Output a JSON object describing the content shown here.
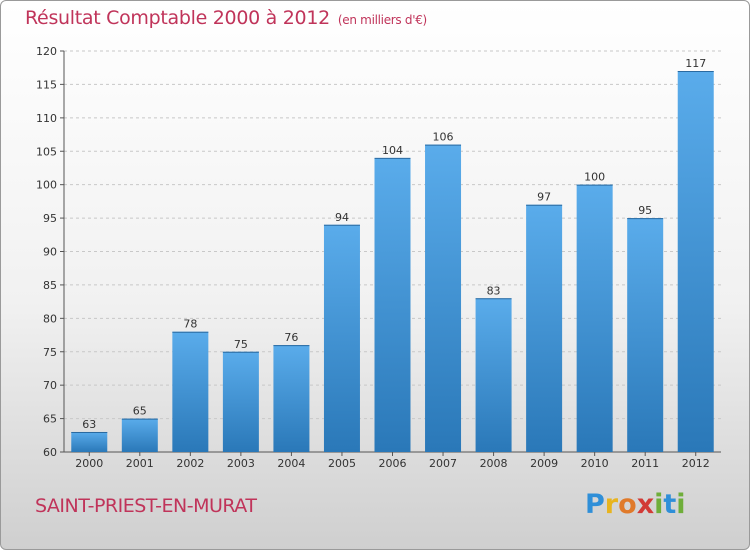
{
  "title": "Résultat Comptable 2000 à 2012",
  "unit": "(en milliers d'€)",
  "town": "SAINT-PRIEST-EN-MURAT",
  "logo": {
    "text": "Proxiti",
    "letters": [
      {
        "ch": "P",
        "color": "#2f8fd8"
      },
      {
        "ch": "r",
        "color": "#e8b41e"
      },
      {
        "ch": "o",
        "color": "#e07a2a"
      },
      {
        "ch": "x",
        "color": "#d23a36"
      },
      {
        "ch": "i",
        "color": "#6fae3a"
      },
      {
        "ch": "t",
        "color": "#2f8fd8"
      },
      {
        "ch": "i",
        "color": "#6fae3a"
      }
    ]
  },
  "colors": {
    "bar_top": "#5aaceb",
    "bar_bottom": "#2a78b8",
    "title": "#c0345a"
  },
  "chart_data": {
    "type": "bar",
    "categories": [
      "2000",
      "2001",
      "2002",
      "2003",
      "2004",
      "2005",
      "2006",
      "2007",
      "2008",
      "2009",
      "2010",
      "2011",
      "2012"
    ],
    "values": [
      63,
      65,
      78,
      75,
      76,
      94,
      104,
      106,
      83,
      97,
      100,
      95,
      117
    ],
    "ylim": [
      60,
      120
    ],
    "yticks": [
      60,
      65,
      70,
      75,
      80,
      85,
      90,
      95,
      100,
      105,
      110,
      115,
      120
    ],
    "grid": "horizontal dashed",
    "title": "Résultat Comptable 2000 à 2012",
    "xlabel": "",
    "ylabel": ""
  }
}
